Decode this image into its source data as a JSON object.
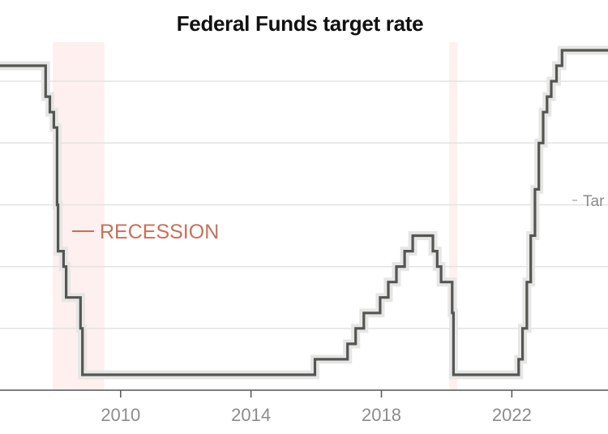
{
  "chart_data": {
    "type": "line",
    "title": "Federal Funds target rate",
    "xlabel": "",
    "ylabel": "",
    "xlim": [
      2006.3,
      2024.95
    ],
    "ylim": [
      0,
      5.75
    ],
    "ygrid": [
      1,
      2,
      3,
      4,
      5
    ],
    "grid": true,
    "xticks": [
      {
        "value": 2010,
        "label": "2010"
      },
      {
        "value": 2014,
        "label": "2014"
      },
      {
        "value": 2018,
        "label": "2018"
      },
      {
        "value": 2022,
        "label": "2022"
      }
    ],
    "recessions": [
      {
        "start": 2007.92,
        "end": 2009.5
      },
      {
        "start": 2020.08,
        "end": 2020.33
      }
    ],
    "legend": {
      "recession_label": "RECESSION",
      "series_label": "Tar"
    },
    "series": [
      {
        "color": "#555551",
        "upper": [
          [
            2006.3,
            5.25
          ],
          [
            2007.7,
            5.25
          ],
          [
            2007.7,
            4.75
          ],
          [
            2007.83,
            4.75
          ],
          [
            2007.83,
            4.5
          ],
          [
            2007.95,
            4.5
          ],
          [
            2007.95,
            4.25
          ],
          [
            2008.05,
            4.25
          ],
          [
            2008.05,
            3.0
          ],
          [
            2008.08,
            3.0
          ],
          [
            2008.08,
            2.25
          ],
          [
            2008.25,
            2.25
          ],
          [
            2008.25,
            2.0
          ],
          [
            2008.33,
            2.0
          ],
          [
            2008.33,
            1.5
          ],
          [
            2008.77,
            1.5
          ],
          [
            2008.77,
            1.0
          ],
          [
            2008.83,
            1.0
          ],
          [
            2008.83,
            0.25
          ],
          [
            2015.96,
            0.25
          ],
          [
            2015.96,
            0.5
          ],
          [
            2016.96,
            0.5
          ],
          [
            2016.96,
            0.75
          ],
          [
            2017.21,
            0.75
          ],
          [
            2017.21,
            1.0
          ],
          [
            2017.46,
            1.0
          ],
          [
            2017.46,
            1.25
          ],
          [
            2017.96,
            1.25
          ],
          [
            2017.96,
            1.5
          ],
          [
            2018.21,
            1.5
          ],
          [
            2018.21,
            1.75
          ],
          [
            2018.46,
            1.75
          ],
          [
            2018.46,
            2.0
          ],
          [
            2018.71,
            2.0
          ],
          [
            2018.71,
            2.25
          ],
          [
            2018.96,
            2.25
          ],
          [
            2018.96,
            2.5
          ],
          [
            2019.58,
            2.5
          ],
          [
            2019.58,
            2.25
          ],
          [
            2019.71,
            2.25
          ],
          [
            2019.71,
            2.0
          ],
          [
            2019.83,
            2.0
          ],
          [
            2019.83,
            1.75
          ],
          [
            2020.17,
            1.75
          ],
          [
            2020.17,
            1.25
          ],
          [
            2020.21,
            1.25
          ],
          [
            2020.21,
            0.25
          ],
          [
            2022.21,
            0.25
          ],
          [
            2022.21,
            0.5
          ],
          [
            2022.33,
            0.5
          ],
          [
            2022.33,
            1.0
          ],
          [
            2022.46,
            1.0
          ],
          [
            2022.46,
            1.75
          ],
          [
            2022.58,
            1.75
          ],
          [
            2022.58,
            2.5
          ],
          [
            2022.71,
            2.5
          ],
          [
            2022.71,
            3.25
          ],
          [
            2022.83,
            3.25
          ],
          [
            2022.83,
            4.0
          ],
          [
            2022.96,
            4.0
          ],
          [
            2022.96,
            4.5
          ],
          [
            2023.08,
            4.5
          ],
          [
            2023.08,
            4.75
          ],
          [
            2023.21,
            4.75
          ],
          [
            2023.21,
            5.0
          ],
          [
            2023.37,
            5.0
          ],
          [
            2023.37,
            5.25
          ],
          [
            2023.54,
            5.25
          ],
          [
            2023.54,
            5.5
          ],
          [
            2024.95,
            5.5
          ]
        ]
      }
    ]
  }
}
